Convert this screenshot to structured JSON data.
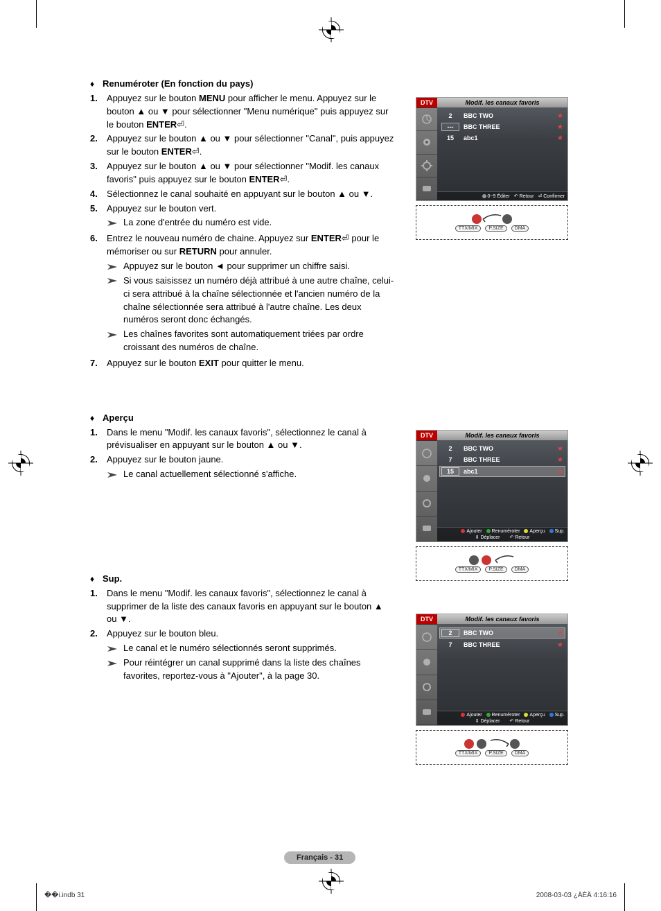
{
  "doc": {
    "page_label": "Français - 31",
    "footer_left": "��i.indb   31",
    "footer_right": "2008-03-03   ¿ÀÈÄ 4:16:16"
  },
  "section1": {
    "title": "Renuméroter (En fonction du pays)",
    "steps": [
      {
        "n": "1.",
        "html": "Appuyez sur le bouton <b>MENU</b> pour afficher le menu. Appuyez sur le bouton ▲ ou ▼ pour sélectionner \"Menu numérique\" puis appuyez sur le bouton <b>ENTER</b>⏎."
      },
      {
        "n": "2.",
        "html": "Appuyez sur le bouton ▲ ou ▼ pour sélectionner \"Canal\", puis appuyez sur le bouton <b>ENTER</b>⏎."
      },
      {
        "n": "3.",
        "html": "Appuyez sur le bouton ▲ ou ▼ pour sélectionner \"Modif. les canaux favoris\" puis appuyez sur le bouton <b>ENTER</b>⏎."
      },
      {
        "n": "4.",
        "html": "Sélectionnez le canal souhaité en appuyant sur le bouton ▲ ou ▼."
      },
      {
        "n": "5.",
        "html": "Appuyez sur le bouton vert.",
        "subs": [
          "La zone d'entrée du numéro est vide."
        ]
      },
      {
        "n": "6.",
        "html": "Entrez le nouveau numéro de chaine. Appuyez sur <b>ENTER</b>⏎ pour le mémoriser ou sur <b>RETURN</b> pour annuler.",
        "subs": [
          "Appuyez sur le bouton ◄ pour supprimer un chiffre saisi.",
          "Si vous saisissez un numéro déjà attribué à une autre chaîne, celui-ci sera attribué à la chaîne sélectionnée et l'ancien numéro de la chaîne sélectionnée sera attribué à l'autre chaîne. Les deux numéros seront donc échangés.",
          "Les chaînes favorites sont automatiquement triées par ordre croissant des numéros de chaîne."
        ]
      },
      {
        "n": "7.",
        "html": "Appuyez sur le bouton <b>EXIT</b> pour quitter le menu."
      }
    ]
  },
  "section2": {
    "title": "Aperçu",
    "steps": [
      {
        "n": "1.",
        "html": "Dans le menu \"Modif. les canaux favoris\", sélectionnez le canal à prévisualiser en appuyant sur le bouton ▲ ou ▼."
      },
      {
        "n": "2.",
        "html": "Appuyez sur le bouton jaune.",
        "subs": [
          "Le canal actuellement sélectionné s'affiche."
        ]
      }
    ]
  },
  "section3": {
    "title": "Sup.",
    "steps": [
      {
        "n": "1.",
        "html": "Dans le menu \"Modif. les canaux favoris\", sélectionnez le canal à supprimer de la liste des canaux favoris en appuyant sur le bouton ▲ ou ▼."
      },
      {
        "n": "2.",
        "html": "Appuyez sur le bouton bleu.",
        "subs": [
          "Le canal et le numéro sélectionnés seront supprimés.",
          "Pour réintégrer un canal supprimé dans la liste des chaînes favorites, reportez-vous à \"Ajouter\", à la page 30."
        ]
      }
    ]
  },
  "osd_common": {
    "dtv": "DTV",
    "title": "Modif. les canaux favoris",
    "labels": {
      "editer": "Éditer",
      "retour": "Retour",
      "confirmer": "Confirmer",
      "ajouter": "Ajouter",
      "renumeroter": "Renuméroter",
      "apercu": "Aperçu",
      "sup": "Sup.",
      "deplacer": "Déplacer"
    }
  },
  "osd1": {
    "rows": [
      {
        "num": "2",
        "name": "BBC TWO",
        "star": true
      },
      {
        "num": "---",
        "name": "BBC THREE",
        "star": true,
        "boxed": true
      },
      {
        "num": "15",
        "name": "abc1",
        "star": true
      }
    ],
    "hints": [
      [
        "0~9 Éditer",
        "↶ Retour",
        "⏎ Confirmer"
      ]
    ]
  },
  "osd2": {
    "rows": [
      {
        "num": "2",
        "name": "BBC TWO",
        "star": true
      },
      {
        "num": "7",
        "name": "BBC THREE",
        "star": true
      },
      {
        "num": "15",
        "name": "abc1",
        "star": true,
        "row_hi": true
      }
    ],
    "hints": [
      [
        "Ajouter",
        "Renuméroter",
        "Aperçu",
        "Sup."
      ],
      [
        "⇕ Déplacer",
        "↶ Retour"
      ]
    ]
  },
  "osd3": {
    "rows": [
      {
        "num": "2",
        "name": "BBC TWO",
        "star": true,
        "row_hi": true
      },
      {
        "num": "7",
        "name": "BBC THREE",
        "star": true
      }
    ],
    "hints": [
      [
        "Ajouter",
        "Renuméroter",
        "Aperçu",
        "Sup."
      ],
      [
        "⇕ Déplacer",
        "↶ Retour"
      ]
    ]
  },
  "remote_labels": {
    "ttx": "TTX/MIX",
    "psize": "P.SIZE",
    "dma": "DMA"
  },
  "colors": {
    "osd_bg_top": "#5a5f66",
    "osd_bg_bot": "#2b2e32",
    "dtv_bg": "#b00",
    "star": "#d44",
    "pill_bg": "#b5b5b5",
    "red": "#d33",
    "green": "#3a3",
    "yellow": "#dd3",
    "blue": "#37d"
  }
}
